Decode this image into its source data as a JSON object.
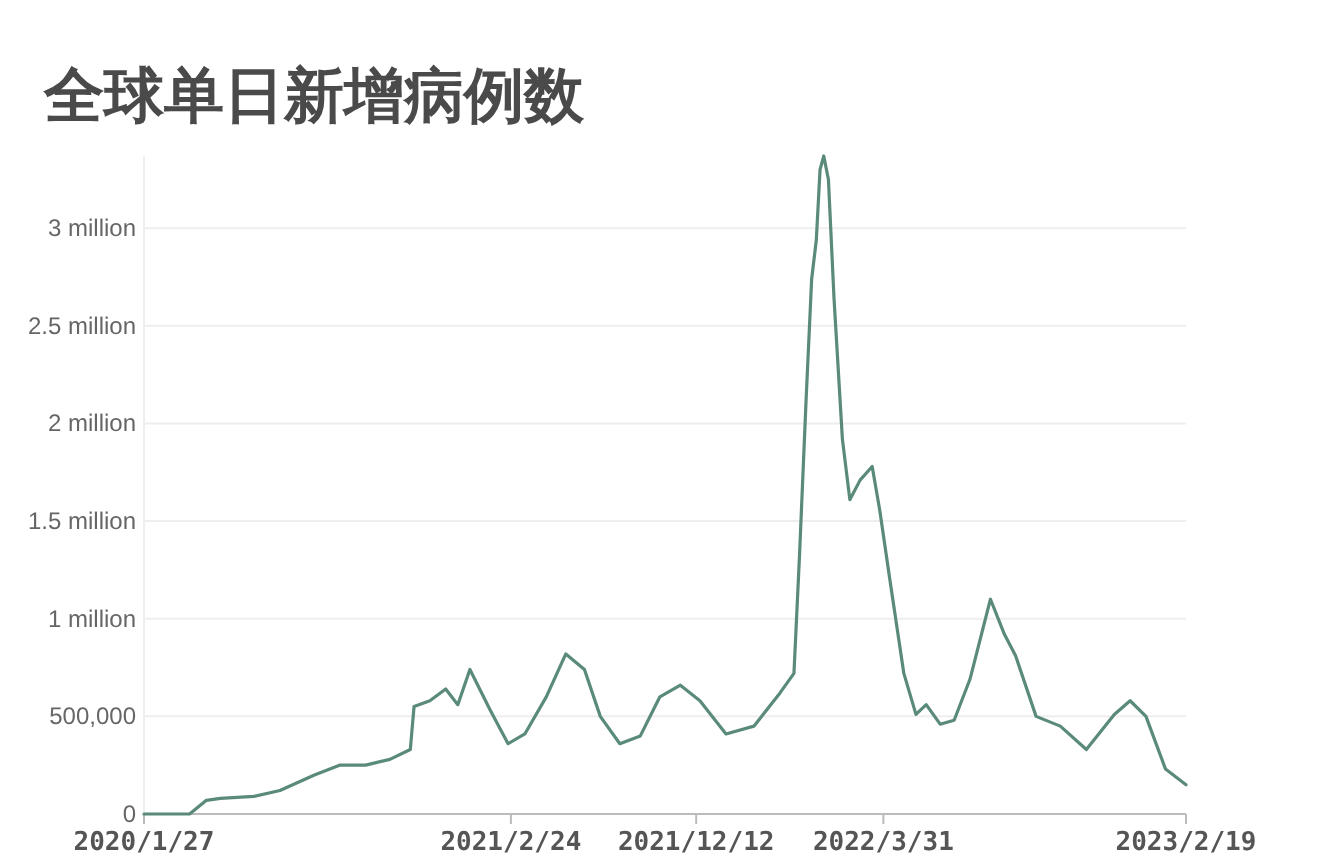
{
  "chart_data": {
    "type": "line",
    "title": "全球单日新增病例数",
    "grid": "y",
    "xlim": [
      "2020-01-27",
      "2023-02-19"
    ],
    "xticks": [
      {
        "value": "2020-01-27",
        "label": "2020/1/27"
      },
      {
        "value": "2021-02-24",
        "label": "2021/2/24"
      },
      {
        "value": "2021-09-11",
        "label": "2021/12/12"
      },
      {
        "value": "2022-03-31",
        "label": "2022/3/31"
      },
      {
        "value": "2023-02-19",
        "label": "2023/2/19"
      }
    ],
    "ylim": [
      0,
      3370000
    ],
    "yticks": [
      0,
      {
        "value": 500000,
        "label": "500,000"
      },
      {
        "value": 1000000,
        "label": "1 million"
      },
      {
        "value": 1500000,
        "label": "1.5 million"
      },
      {
        "value": 2000000,
        "label": "2 million"
      },
      {
        "value": 2500000,
        "label": "2.5 million"
      },
      {
        "value": 3000000,
        "label": "3 million"
      }
    ],
    "series": [
      {
        "color": "#5a8a78",
        "x": [
          "2020-01-27",
          "2020-03-16",
          "2020-04-03",
          "2020-04-18",
          "2020-05-24",
          "2020-06-21",
          "2020-07-28",
          "2020-08-24",
          "2020-09-21",
          "2020-10-17",
          "2020-11-08",
          "2020-11-12",
          "2020-11-29",
          "2020-12-16",
          "2020-12-29",
          "2021-01-11",
          "2021-02-02",
          "2021-02-21",
          "2021-03-11",
          "2021-04-03",
          "2021-04-24",
          "2021-05-14",
          "2021-05-31",
          "2021-06-21",
          "2021-07-13",
          "2021-08-03",
          "2021-08-25",
          "2021-09-15",
          "2021-10-13",
          "2021-11-12",
          "2021-12-10",
          "2021-12-25",
          "2021-12-31",
          "2022-01-07",
          "2022-01-13",
          "2022-01-18",
          "2022-01-22",
          "2022-01-26",
          "2022-01-31",
          "2022-02-06",
          "2022-02-15",
          "2022-02-23",
          "2022-03-06",
          "2022-03-19",
          "2022-03-27",
          "2022-04-07",
          "2022-04-22",
          "2022-05-05",
          "2022-05-16",
          "2022-05-31",
          "2022-06-15",
          "2022-07-02",
          "2022-07-24",
          "2022-08-08",
          "2022-08-20",
          "2022-09-11",
          "2022-10-07",
          "2022-11-04",
          "2022-12-04",
          "2022-12-21",
          "2023-01-07",
          "2023-01-28",
          "2023-02-19"
        ],
        "values": [
          0,
          0,
          70000,
          80000,
          90000,
          120000,
          200000,
          250000,
          250000,
          280000,
          330000,
          550000,
          580000,
          640000,
          560000,
          740000,
          530000,
          360000,
          410000,
          600000,
          820000,
          740000,
          500000,
          360000,
          400000,
          600000,
          660000,
          580000,
          410000,
          450000,
          620000,
          720000,
          1330000,
          2120000,
          2740000,
          2940000,
          3300000,
          3370000,
          3250000,
          2640000,
          1920000,
          1610000,
          1710000,
          1780000,
          1560000,
          1200000,
          720000,
          510000,
          560000,
          460000,
          480000,
          690000,
          1100000,
          920000,
          810000,
          500000,
          450000,
          330000,
          510000,
          580000,
          500000,
          230000,
          150000
        ]
      }
    ]
  }
}
